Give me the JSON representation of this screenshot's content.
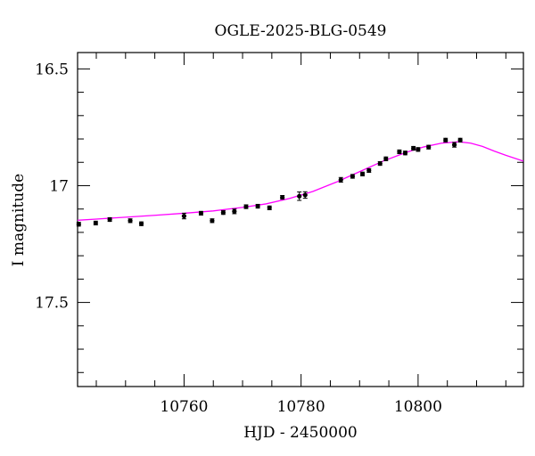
{
  "chart_data": {
    "type": "scatter",
    "title": "OGLE-2025-BLG-0549",
    "xlabel": "HJD - 2450000",
    "ylabel": "I magnitude",
    "xlim": [
      10741.8,
      10818
    ],
    "ylim": [
      17.86,
      16.43
    ],
    "y_inverted": true,
    "x_ticks": [
      10760,
      10780,
      10800
    ],
    "y_ticks": [
      16.5,
      17,
      17.5
    ],
    "x_tick_labels": [
      "10760",
      "10780",
      "10800"
    ],
    "y_tick_labels": [
      "16.5",
      "17",
      "17.5"
    ],
    "grid": false,
    "legend": "none",
    "series": [
      {
        "kind": "observations",
        "x": [
          10742.0,
          10744.9,
          10747.3,
          10750.8,
          10752.7,
          10760.0,
          10762.9,
          10764.8,
          10766.7,
          10768.6,
          10770.6,
          10772.6,
          10774.6,
          10776.8,
          10779.7,
          10780.7,
          10786.8,
          10788.8,
          10790.5,
          10791.6,
          10793.5,
          10794.5,
          10796.8,
          10797.8,
          10799.2,
          10800.0,
          10801.8,
          10804.7,
          10806.2,
          10807.2
        ],
        "y": [
          17.165,
          17.16,
          17.145,
          17.15,
          17.163,
          17.13,
          17.118,
          17.15,
          17.115,
          17.11,
          17.09,
          17.088,
          17.095,
          17.05,
          17.045,
          17.04,
          16.975,
          16.96,
          16.95,
          16.935,
          16.905,
          16.885,
          16.855,
          16.86,
          16.84,
          16.845,
          16.835,
          16.805,
          16.825,
          16.805
        ],
        "yerr": [
          0.008,
          0.008,
          0.008,
          0.008,
          0.008,
          0.012,
          0.008,
          0.008,
          0.008,
          0.01,
          0.008,
          0.008,
          0.008,
          0.008,
          0.018,
          0.014,
          0.01,
          0.008,
          0.008,
          0.008,
          0.008,
          0.008,
          0.008,
          0.008,
          0.008,
          0.008,
          0.008,
          0.008,
          0.01,
          0.008
        ],
        "color": "#000000"
      },
      {
        "kind": "model",
        "x": [
          10741.8,
          10745,
          10750,
          10755,
          10760,
          10765,
          10770,
          10774,
          10778,
          10782,
          10786,
          10790,
          10794,
          10798,
          10801,
          10804,
          10807,
          10809,
          10811,
          10813,
          10815,
          10818
        ],
        "y": [
          17.148,
          17.143,
          17.135,
          17.127,
          17.118,
          17.108,
          17.093,
          17.078,
          17.055,
          17.025,
          16.985,
          16.94,
          16.895,
          16.857,
          16.834,
          16.818,
          16.812,
          16.818,
          16.832,
          16.852,
          16.87,
          16.895
        ],
        "color": "#ff00ff"
      }
    ]
  }
}
